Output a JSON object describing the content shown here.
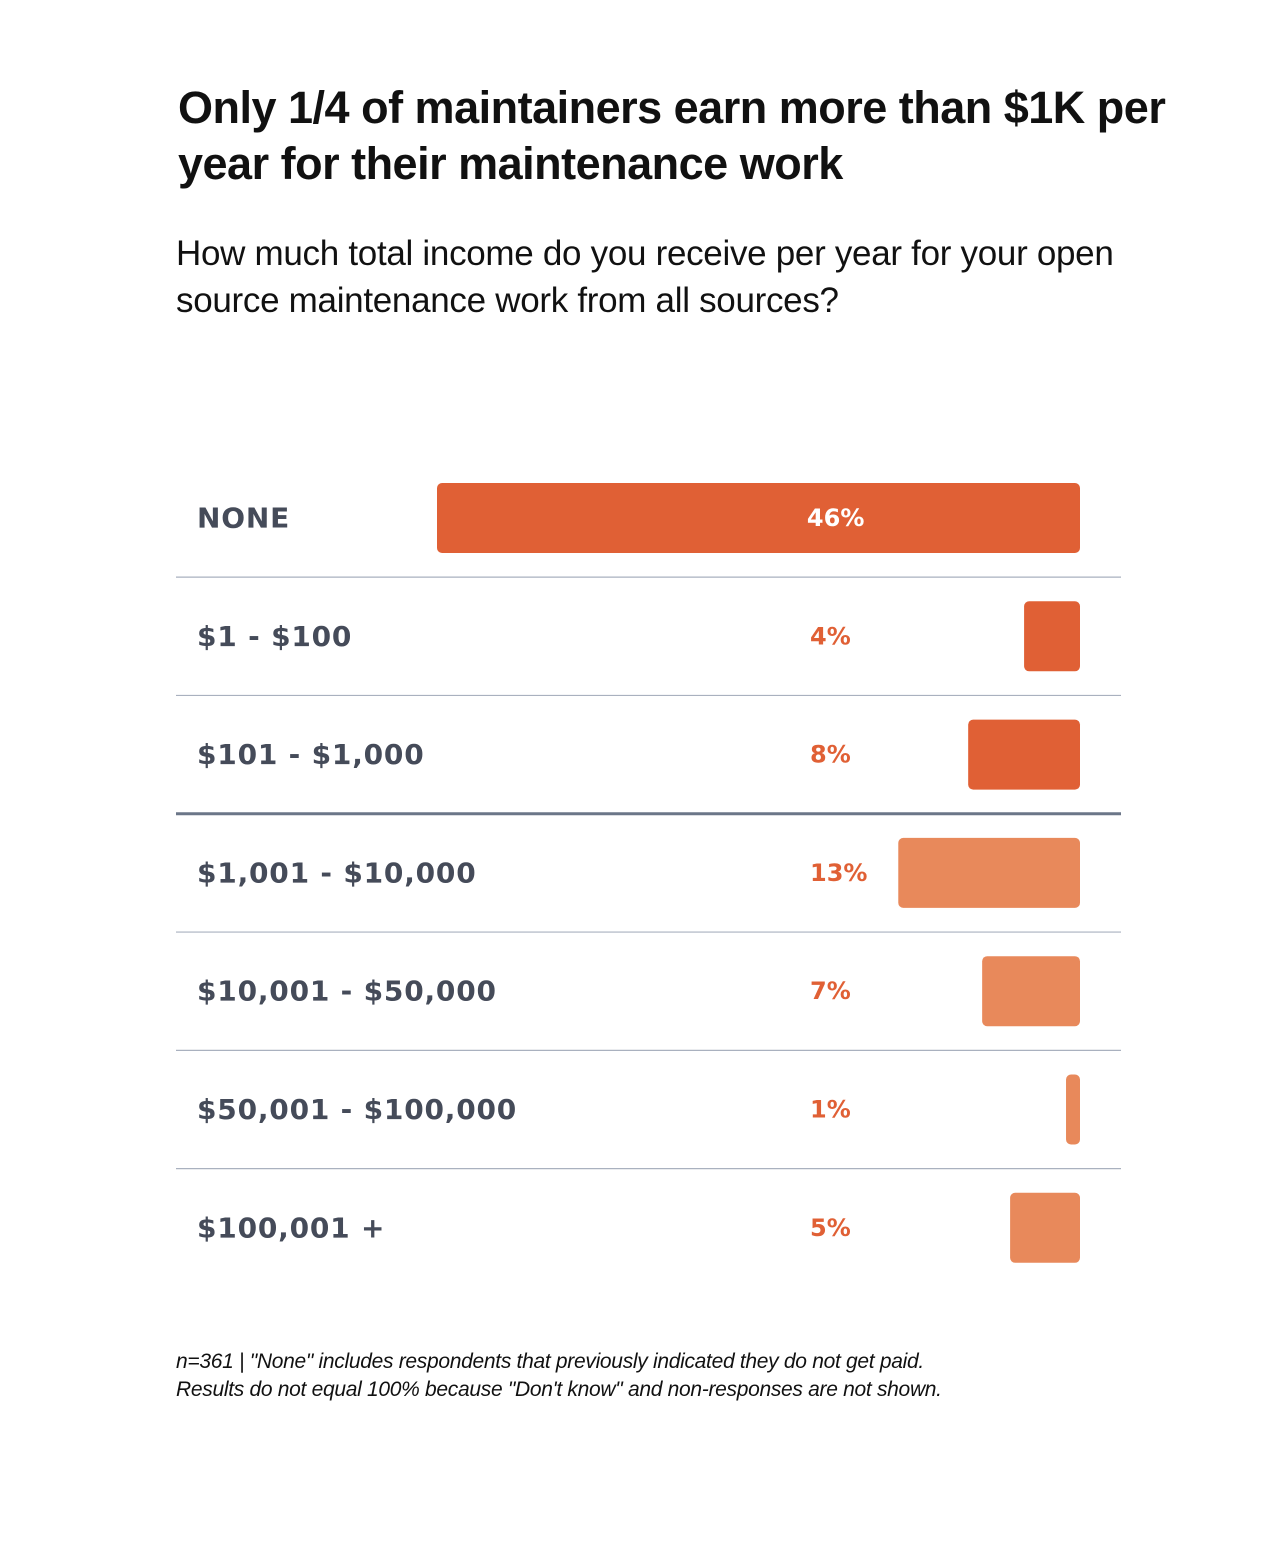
{
  "chart_data": {
    "type": "bar",
    "orientation": "horizontal",
    "title": "Only 1/4 of maintainers earn more than $1K per year for their maintenance work",
    "subtitle": "How much total income do you receive per year for your open source maintenance work from all sources?",
    "categories": [
      "NONE",
      "$1 - $100",
      "$101 - $1,000",
      "$1,001 - $10,000",
      "$10,001 - $50,000",
      "$50,001 - $100,000",
      "$100,001 +"
    ],
    "values": [
      46,
      4,
      8,
      13,
      7,
      1,
      5
    ],
    "value_labels": [
      "46%",
      "4%",
      "8%",
      "13%",
      "7%",
      "1%",
      "5%"
    ],
    "unit": "%",
    "groups": [
      "under $1K",
      "under $1K",
      "under $1K",
      "over $1K",
      "over $1K",
      "over $1K",
      "over $1K"
    ],
    "group_colors": {
      "under $1K": "#e06035",
      "over $1K": "#e8895b"
    },
    "label_color": "#454b59",
    "value_color": "#e06035",
    "inside_label_color": "#ffffff",
    "xlim": [
      0,
      46
    ],
    "grid": false,
    "legend": "none"
  },
  "footnote": {
    "line1": "n=361 | \"None\" includes respondents that previously indicated they do not get paid.",
    "line2": "Results do not equal 100% because \"Don't know\" and non-responses are not shown."
  }
}
